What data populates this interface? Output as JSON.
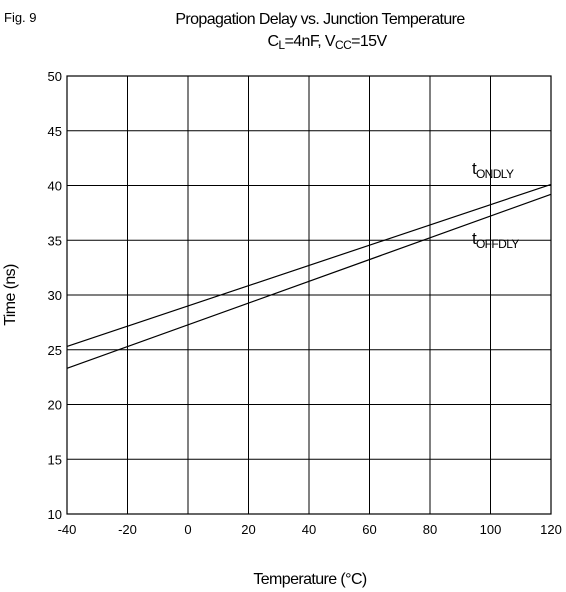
{
  "figure_label": "Fig. 9",
  "chart_data": {
    "type": "line",
    "title": "Propagation Delay vs. Junction Temperature",
    "subtitle": {
      "c_main": "C",
      "c_sub": "L",
      "c_value": "=4nF, V",
      "v_sub": "CC",
      "v_value": "=15V"
    },
    "xlabel": "Temperature (°C)",
    "ylabel": "Time (ns)",
    "xlim": [
      -40,
      120
    ],
    "ylim": [
      10,
      50
    ],
    "xticks": [
      -40,
      -20,
      0,
      20,
      40,
      60,
      80,
      100,
      120
    ],
    "yticks": [
      10,
      15,
      20,
      25,
      30,
      35,
      40,
      45,
      50
    ],
    "grid": true,
    "series": [
      {
        "name_main": "t",
        "name_sub": "ONDLY",
        "x": [
          -40,
          120
        ],
        "y": [
          25.3,
          40.1
        ]
      },
      {
        "name_main": "t",
        "name_sub": "OFFDLY",
        "x": [
          -40,
          120
        ],
        "y": [
          23.3,
          39.2
        ]
      }
    ],
    "line_color": "#000000"
  }
}
